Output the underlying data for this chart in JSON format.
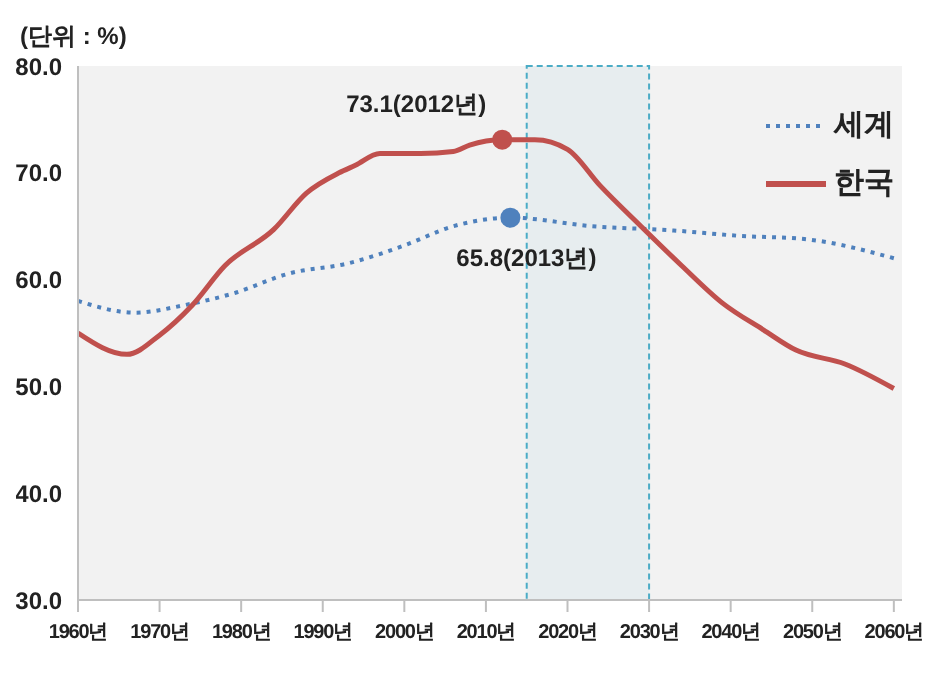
{
  "chart_data": {
    "type": "line",
    "ylabel": "(단위 : %)",
    "xlim": [
      1960,
      2061
    ],
    "xticks": [
      {
        "value": 1960,
        "label": "1960년"
      },
      {
        "value": 1970,
        "label": "1970년"
      },
      {
        "value": 1980,
        "label": "1980년"
      },
      {
        "value": 1990,
        "label": "1990년"
      },
      {
        "value": 2000,
        "label": "2000년"
      },
      {
        "value": 2010,
        "label": "2010년"
      },
      {
        "value": 2020,
        "label": "2020년"
      },
      {
        "value": 2030,
        "label": "2030년"
      },
      {
        "value": 2040,
        "label": "2040년"
      },
      {
        "value": 2050,
        "label": "2050년"
      },
      {
        "value": 2060,
        "label": "2060년"
      }
    ],
    "ylim": [
      30,
      80
    ],
    "yticks": [
      {
        "value": 30,
        "label": "30.0"
      },
      {
        "value": 40,
        "label": "40.0"
      },
      {
        "value": 50,
        "label": "50.0"
      },
      {
        "value": 60,
        "label": "60.0"
      },
      {
        "value": 70,
        "label": "70.0"
      },
      {
        "value": 80,
        "label": "80.0"
      }
    ],
    "series": [
      {
        "name": "세계",
        "color": "#4f81bd",
        "line_style": "dotted",
        "x": [
          1960,
          1967,
          1973,
          1979,
          1986,
          1993,
          2000,
          2006,
          2013,
          2023,
          2033,
          2041,
          2049,
          2060
        ],
        "values": [
          58.0,
          56.9,
          57.6,
          58.7,
          60.6,
          61.5,
          63.2,
          65.0,
          65.8,
          65.0,
          64.6,
          64.1,
          63.8,
          62.0
        ]
      },
      {
        "name": "한국",
        "color": "#c0504d",
        "line_style": "solid",
        "x": [
          1960,
          1966,
          1970,
          1974,
          1978,
          1984,
          1988,
          1992,
          1994,
          1997,
          2002,
          2006,
          2008,
          2012,
          2016,
          2020,
          2024,
          2029,
          2034,
          2039,
          2044,
          2048,
          2054,
          2060
        ],
        "values": [
          55.0,
          53.0,
          54.8,
          57.6,
          61.3,
          64.7,
          68.1,
          70.0,
          70.7,
          71.8,
          71.8,
          72.0,
          72.6,
          73.1,
          73.1,
          72.2,
          68.8,
          65.0,
          61.3,
          57.8,
          55.3,
          53.4,
          52.1,
          49.8
        ]
      }
    ],
    "annotations": [
      {
        "text": "73.1(2012년)",
        "x": 2012,
        "y": 73.1
      },
      {
        "text": "65.8(2013년)",
        "x": 2013,
        "y": 65.8
      }
    ],
    "bands": [
      {
        "axis": "x",
        "from": 2015,
        "to": 2030,
        "color": "#4bacc6"
      }
    ],
    "marker": "none",
    "grid": false,
    "legend": "top right"
  }
}
